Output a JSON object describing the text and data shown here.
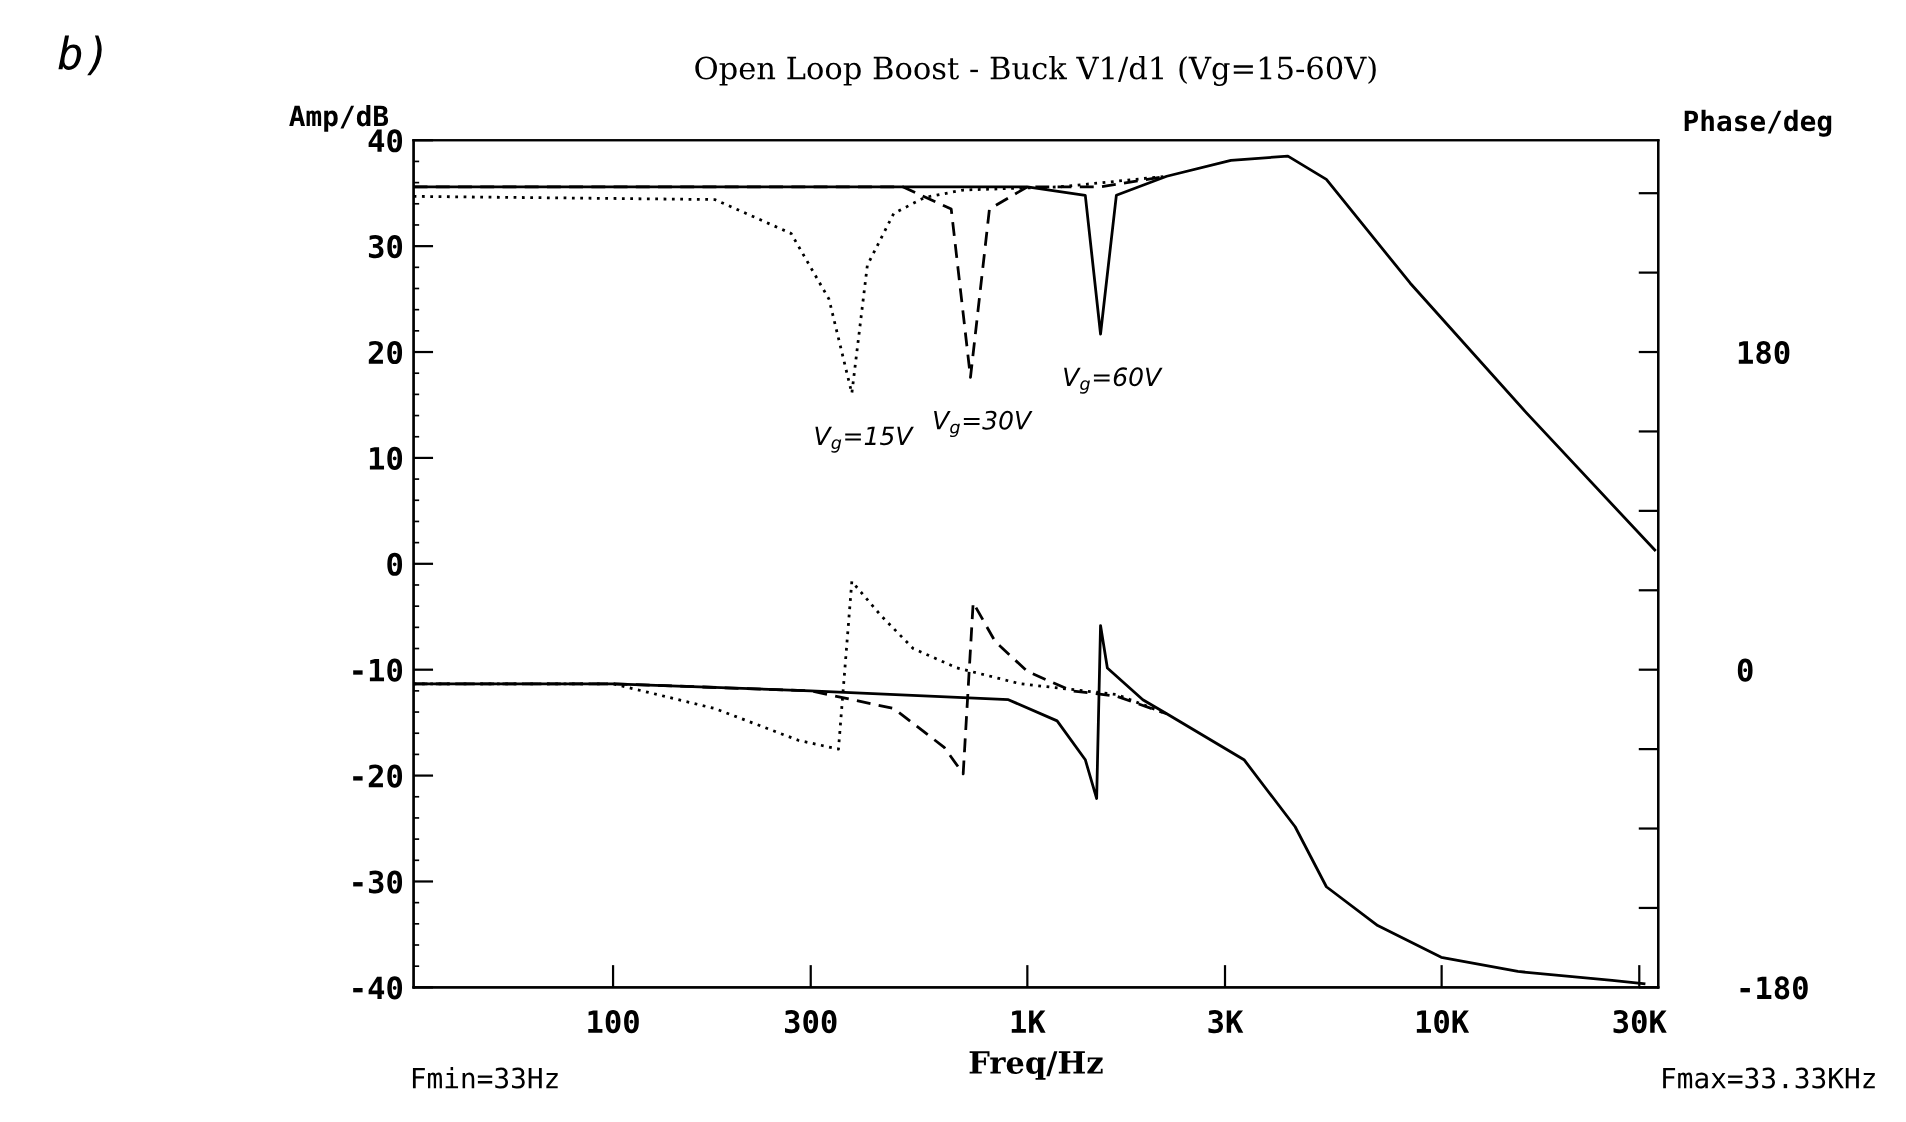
{
  "chart_data": {
    "type": "line",
    "title": "Open Loop Boost - Buck V1/d1 (Vg=15-60V)",
    "xlabel": "Freq/Hz",
    "ylabel": "Amp/dB",
    "y2label": "Phase/deg",
    "log": "x",
    "grid": false,
    "marker": "none",
    "xlim": [
      33,
      33330
    ],
    "xticks": [
      {
        "value": 100,
        "label": "100"
      },
      {
        "value": 300,
        "label": "300"
      },
      {
        "value": 1000,
        "label": "1K"
      },
      {
        "value": 3000,
        "label": "3K"
      },
      {
        "value": 10000,
        "label": "10K"
      },
      {
        "value": 30000,
        "label": "30K"
      }
    ],
    "ylim": [
      -40,
      40
    ],
    "yticks": [
      -40,
      -30,
      -20,
      -10,
      0,
      10,
      20,
      30,
      40
    ],
    "y2lim": [
      -180,
      300
    ],
    "y2ticks": [
      -180,
      {
        "value": -135,
        "label": null
      },
      {
        "value": -90,
        "label": null
      },
      {
        "value": -45,
        "label": null
      },
      0,
      {
        "value": 45,
        "label": null
      },
      {
        "value": 90,
        "label": null
      },
      {
        "value": 135,
        "label": null
      },
      180,
      {
        "value": 225,
        "label": null
      },
      {
        "value": 270,
        "label": null
      }
    ],
    "series": [
      {
        "color": "#000000",
        "line_style": "dotted",
        "x": [
          33,
          176,
          269,
          332,
          377,
          411,
          476,
          566,
          700,
          1200,
          2170
        ],
        "values": [
          34.7,
          34.4,
          31.2,
          25,
          16.1,
          28.2,
          33.1,
          34.6,
          35.3,
          35.6,
          36.6
        ]
      },
      {
        "color": "#000000",
        "line_style": "dashed",
        "x": [
          33,
          500,
          655,
          729,
          810,
          1000,
          1500,
          2170
        ],
        "values": [
          35.6,
          35.6,
          33.5,
          17.6,
          33.5,
          35.6,
          35.6,
          36.6
        ]
      },
      {
        "color": "#000000",
        "line_style": "solid",
        "x": [
          33,
          1000,
          1380,
          1502,
          1640,
          2170,
          3100,
          4256,
          5270,
          8400,
          15900,
          32700
        ],
        "values": [
          35.6,
          35.6,
          34.8,
          21.7,
          34.8,
          36.6,
          38.1,
          38.5,
          36.3,
          26.5,
          14.4,
          1.3
        ]
      },
      {
        "color": "#000000",
        "line_style": "dotted",
        "axis": "y2",
        "x": [
          33,
          100,
          176,
          280,
          350,
          377,
          442,
          530,
          676,
          963,
          1640,
          2170
        ],
        "values": [
          -8,
          -8,
          -22,
          -40,
          -45,
          50,
          31,
          12,
          1,
          -8,
          -14,
          -25
        ]
      },
      {
        "color": "#000000",
        "line_style": "dashed",
        "axis": "y2",
        "x": [
          33,
          100,
          300,
          476,
          630,
          700,
          740,
          836,
          1000,
          1280,
          1640,
          2170
        ],
        "values": [
          -8,
          -8,
          -12,
          -22,
          -44,
          -59,
          38,
          16,
          -1,
          -12,
          -15,
          -25
        ]
      },
      {
        "color": "#000000",
        "line_style": "solid",
        "axis": "y2",
        "x": [
          33,
          100,
          300,
          900,
          1180,
          1380,
          1470,
          1502,
          1560,
          1900,
          2170,
          3334,
          4430,
          5270,
          7010,
          9980,
          15280,
          25800,
          30800
        ],
        "values": [
          -8,
          -8,
          -12,
          -17,
          -29,
          -51,
          -73,
          25,
          1,
          -17,
          -25,
          -51,
          -89,
          -123,
          -145,
          -163,
          -171,
          -176,
          -178
        ]
      }
    ],
    "annotations": [
      "b)",
      "Fmin=33Hz",
      "Fmax=33.33KHz",
      {
        "text": "V$_{g}$=15V",
        "x": 377,
        "y": 16.1
      },
      {
        "text": "V$_{g}$=30V",
        "x": 729,
        "y": 17.6
      },
      {
        "text": "V$_{g}$=60V",
        "x": 1502,
        "y": 21.7
      }
    ]
  }
}
